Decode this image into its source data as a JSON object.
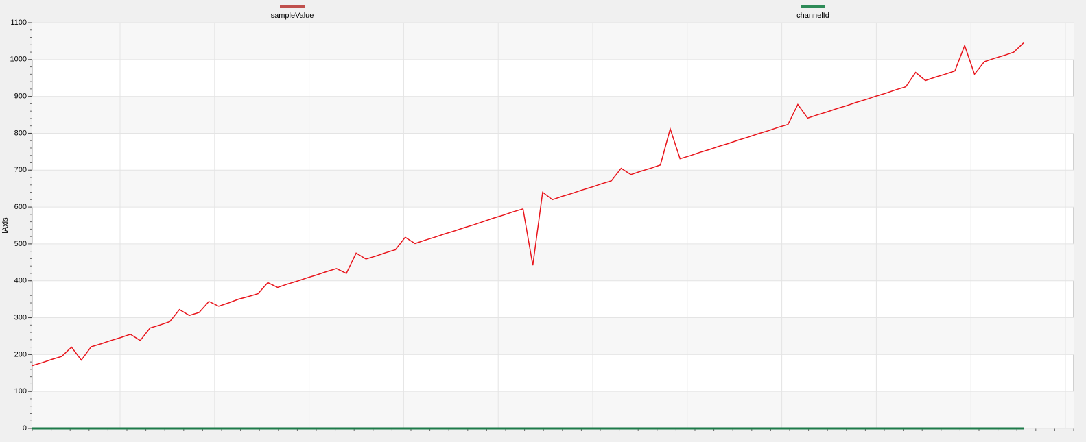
{
  "chart_data": {
    "type": "line",
    "y_label": "lAxis",
    "ylim": [
      0,
      1100
    ],
    "yticks": [
      0,
      100,
      200,
      300,
      400,
      500,
      600,
      700,
      800,
      900,
      1000,
      1100
    ],
    "grid": true,
    "legend": "top",
    "series": [
      {
        "name": "sampleValue",
        "color": "#e8141b",
        "legend_color": "#c0504d",
        "values": [
          170,
          178,
          187,
          195,
          220,
          185,
          221,
          229,
          238,
          246,
          255,
          238,
          272,
          280,
          289,
          322,
          306,
          314,
          344,
          331,
          340,
          350,
          357,
          365,
          395,
          382,
          391,
          399,
          408,
          416,
          425,
          433,
          420,
          475,
          459,
          467,
          476,
          484,
          518,
          501,
          510,
          518,
          527,
          535,
          544,
          552,
          561,
          570,
          578,
          587,
          595,
          442,
          640,
          620,
          629,
          637,
          646,
          654,
          663,
          671,
          705,
          688,
          697,
          705,
          714,
          812,
          731,
          739,
          748,
          756,
          765,
          773,
          782,
          790,
          799,
          807,
          816,
          824,
          878,
          841,
          850,
          858,
          867,
          875,
          884,
          892,
          901,
          909,
          918,
          926,
          965,
          943,
          952,
          960,
          969,
          1038,
          960,
          994,
          1003,
          1011,
          1020,
          1045
        ]
      },
      {
        "name": "channelId",
        "color": "#1e7b4a",
        "legend_color": "#2e8b57",
        "values": [
          0,
          0,
          0,
          0,
          0,
          0,
          0,
          0,
          0,
          0,
          0,
          0,
          0,
          0,
          0,
          0,
          0,
          0,
          0,
          0,
          0,
          0,
          0,
          0,
          0,
          0,
          0,
          0,
          0,
          0,
          0,
          0,
          0,
          0,
          0,
          0,
          0,
          0,
          0,
          0,
          0,
          0,
          0,
          0,
          0,
          0,
          0,
          0,
          0,
          0,
          0,
          0,
          0,
          0,
          0,
          0,
          0,
          0,
          0,
          0,
          0,
          0,
          0,
          0,
          0,
          0,
          0,
          0,
          0,
          0,
          0,
          0,
          0,
          0,
          0,
          0,
          0,
          0,
          0,
          0,
          0,
          0,
          0,
          0,
          0,
          0,
          0,
          0,
          0,
          0,
          0,
          0,
          0,
          0,
          0,
          0,
          0,
          0,
          0,
          0,
          0,
          0
        ]
      }
    ]
  }
}
